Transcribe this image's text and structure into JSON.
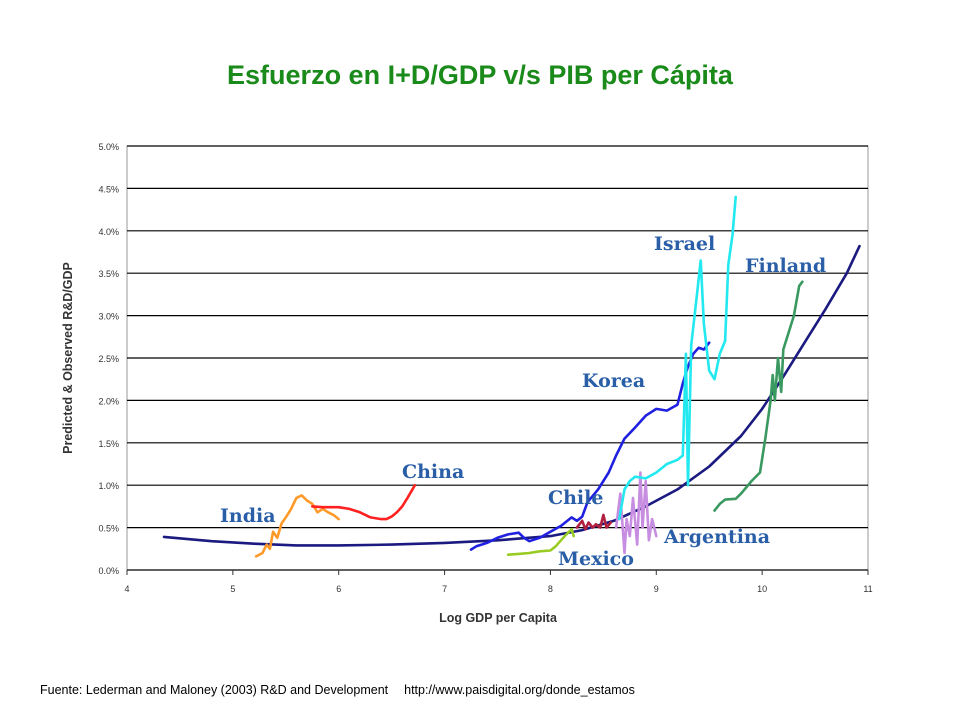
{
  "slide": {
    "title": "Esfuerzo en I+D/GDP v/s PIB per Cápita",
    "source": "Fuente: Lederman and Maloney (2003) R&D and Development",
    "source_url": "http://www.paisdigital.org/donde_estamos"
  },
  "chart_data": {
    "type": "line",
    "title": "",
    "xlabel": "Log GDP per Capita",
    "ylabel": "Predicted & Observed R&D/GDP",
    "xlim": [
      4,
      11
    ],
    "ylim": [
      0,
      5
    ],
    "x_ticks": [
      "4",
      "5",
      "6",
      "7",
      "8",
      "9",
      "10",
      "11"
    ],
    "y_ticks": [
      "0.0%",
      "0.5%",
      "1.0%",
      "1.5%",
      "2.0%",
      "2.5%",
      "3.0%",
      "3.5%",
      "4.0%",
      "4.5%",
      "5.0%"
    ],
    "grid": "horizontal",
    "series": [
      {
        "name": "",
        "color": "#1a1a80",
        "points": [
          [
            4.35,
            0.39
          ],
          [
            4.8,
            0.34
          ],
          [
            5.2,
            0.31
          ],
          [
            5.6,
            0.29
          ],
          [
            6.0,
            0.29
          ],
          [
            6.5,
            0.3
          ],
          [
            7.0,
            0.32
          ],
          [
            7.5,
            0.35
          ],
          [
            8.0,
            0.4
          ],
          [
            8.3,
            0.47
          ],
          [
            8.6,
            0.58
          ],
          [
            8.9,
            0.75
          ],
          [
            9.2,
            0.95
          ],
          [
            9.5,
            1.22
          ],
          [
            9.8,
            1.58
          ],
          [
            10.0,
            1.9
          ],
          [
            10.2,
            2.28
          ],
          [
            10.4,
            2.68
          ],
          [
            10.6,
            3.08
          ],
          [
            10.8,
            3.5
          ],
          [
            10.92,
            3.82
          ]
        ]
      },
      {
        "name": "India",
        "color": "#ff9a2a",
        "points": [
          [
            5.22,
            0.16
          ],
          [
            5.28,
            0.2
          ],
          [
            5.32,
            0.3
          ],
          [
            5.35,
            0.25
          ],
          [
            5.38,
            0.45
          ],
          [
            5.42,
            0.38
          ],
          [
            5.46,
            0.55
          ],
          [
            5.5,
            0.62
          ],
          [
            5.55,
            0.72
          ],
          [
            5.6,
            0.85
          ],
          [
            5.65,
            0.88
          ],
          [
            5.7,
            0.82
          ],
          [
            5.75,
            0.78
          ],
          [
            5.8,
            0.68
          ],
          [
            5.85,
            0.72
          ],
          [
            5.9,
            0.68
          ],
          [
            5.95,
            0.65
          ],
          [
            6.0,
            0.6
          ]
        ]
      },
      {
        "name": "China",
        "color": "#ff2020",
        "points": [
          [
            5.75,
            0.75
          ],
          [
            5.85,
            0.74
          ],
          [
            6.0,
            0.74
          ],
          [
            6.1,
            0.72
          ],
          [
            6.2,
            0.68
          ],
          [
            6.3,
            0.62
          ],
          [
            6.4,
            0.6
          ],
          [
            6.45,
            0.6
          ],
          [
            6.5,
            0.63
          ],
          [
            6.55,
            0.68
          ],
          [
            6.6,
            0.75
          ],
          [
            6.65,
            0.85
          ],
          [
            6.72,
            1.0
          ]
        ]
      },
      {
        "name": "Korea",
        "color": "#2020e0",
        "points": [
          [
            7.25,
            0.24
          ],
          [
            7.3,
            0.28
          ],
          [
            7.35,
            0.3
          ],
          [
            7.4,
            0.32
          ],
          [
            7.5,
            0.38
          ],
          [
            7.6,
            0.42
          ],
          [
            7.7,
            0.44
          ],
          [
            7.75,
            0.38
          ],
          [
            7.8,
            0.34
          ],
          [
            7.9,
            0.38
          ],
          [
            8.0,
            0.45
          ],
          [
            8.1,
            0.52
          ],
          [
            8.2,
            0.62
          ],
          [
            8.25,
            0.58
          ],
          [
            8.3,
            0.63
          ],
          [
            8.35,
            0.8
          ],
          [
            8.45,
            0.95
          ],
          [
            8.55,
            1.15
          ],
          [
            8.62,
            1.35
          ],
          [
            8.7,
            1.55
          ],
          [
            8.8,
            1.68
          ],
          [
            8.9,
            1.82
          ],
          [
            9.0,
            1.9
          ],
          [
            9.1,
            1.88
          ],
          [
            9.2,
            1.95
          ],
          [
            9.25,
            2.2
          ],
          [
            9.3,
            2.4
          ],
          [
            9.35,
            2.55
          ],
          [
            9.4,
            2.62
          ],
          [
            9.45,
            2.6
          ],
          [
            9.5,
            2.68
          ]
        ]
      },
      {
        "name": "Chile",
        "color": "#b02040",
        "points": [
          [
            8.25,
            0.5
          ],
          [
            8.3,
            0.58
          ],
          [
            8.33,
            0.48
          ],
          [
            8.36,
            0.56
          ],
          [
            8.4,
            0.5
          ],
          [
            8.43,
            0.54
          ],
          [
            8.47,
            0.5
          ],
          [
            8.5,
            0.65
          ],
          [
            8.53,
            0.5
          ],
          [
            8.57,
            0.56
          ]
        ]
      },
      {
        "name": "Mexico",
        "color": "#99cc22",
        "points": [
          [
            7.6,
            0.18
          ],
          [
            7.7,
            0.19
          ],
          [
            7.8,
            0.2
          ],
          [
            7.9,
            0.22
          ],
          [
            8.0,
            0.23
          ],
          [
            8.05,
            0.28
          ],
          [
            8.1,
            0.35
          ],
          [
            8.15,
            0.42
          ],
          [
            8.2,
            0.48
          ],
          [
            8.22,
            0.4
          ]
        ]
      },
      {
        "name": "Argentina",
        "color": "#c78de0",
        "points": [
          [
            8.62,
            0.5
          ],
          [
            8.66,
            0.9
          ],
          [
            8.7,
            0.2
          ],
          [
            8.72,
            0.6
          ],
          [
            8.75,
            0.4
          ],
          [
            8.78,
            0.85
          ],
          [
            8.82,
            0.3
          ],
          [
            8.85,
            1.15
          ],
          [
            8.87,
            0.5
          ],
          [
            8.9,
            1.05
          ],
          [
            8.93,
            0.35
          ],
          [
            8.96,
            0.6
          ],
          [
            9.0,
            0.4
          ]
        ]
      },
      {
        "name": "Israel",
        "color": "#22e8f0",
        "points": [
          [
            8.65,
            0.6
          ],
          [
            8.7,
            0.95
          ],
          [
            8.75,
            1.05
          ],
          [
            8.8,
            1.1
          ],
          [
            8.9,
            1.08
          ],
          [
            9.0,
            1.15
          ],
          [
            9.1,
            1.25
          ],
          [
            9.2,
            1.3
          ],
          [
            9.25,
            1.35
          ],
          [
            9.28,
            2.55
          ],
          [
            9.3,
            1.0
          ],
          [
            9.33,
            2.65
          ],
          [
            9.38,
            3.2
          ],
          [
            9.42,
            3.65
          ],
          [
            9.45,
            2.9
          ],
          [
            9.5,
            2.35
          ],
          [
            9.55,
            2.25
          ],
          [
            9.6,
            2.55
          ],
          [
            9.65,
            2.7
          ],
          [
            9.68,
            3.6
          ],
          [
            9.72,
            3.95
          ],
          [
            9.75,
            4.4
          ]
        ]
      },
      {
        "name": "Finland",
        "color": "#3a9960",
        "points": [
          [
            9.55,
            0.7
          ],
          [
            9.6,
            0.78
          ],
          [
            9.65,
            0.83
          ],
          [
            9.75,
            0.84
          ],
          [
            9.8,
            0.9
          ],
          [
            9.9,
            1.05
          ],
          [
            9.98,
            1.15
          ],
          [
            10.03,
            1.55
          ],
          [
            10.08,
            2.0
          ],
          [
            10.1,
            2.3
          ],
          [
            10.12,
            2.0
          ],
          [
            10.15,
            2.5
          ],
          [
            10.18,
            2.1
          ],
          [
            10.2,
            2.6
          ],
          [
            10.25,
            2.8
          ],
          [
            10.3,
            3.0
          ],
          [
            10.35,
            3.35
          ],
          [
            10.38,
            3.4
          ]
        ]
      }
    ],
    "annotations": [
      "India",
      "China",
      "Korea",
      "Chile",
      "Mexico",
      "Argentina",
      "Israel",
      "Finland"
    ]
  }
}
